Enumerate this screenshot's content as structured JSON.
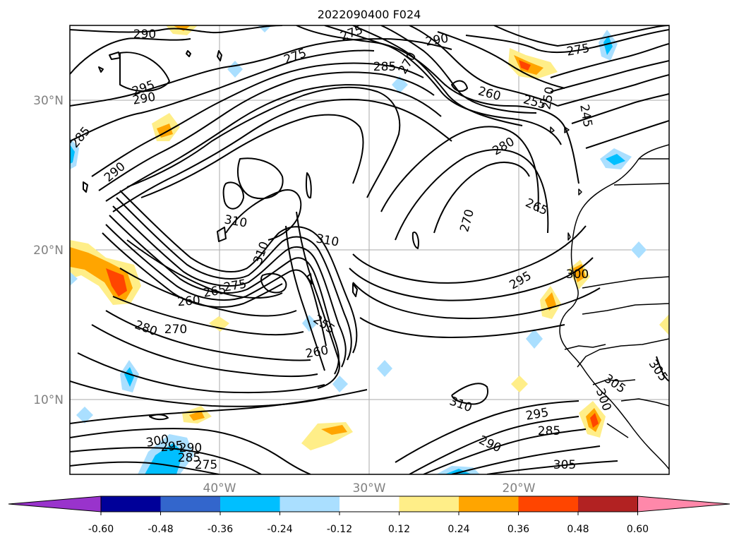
{
  "title": "2022090400 F024",
  "lat_labels": [
    "30°N",
    "20°N",
    "10°N"
  ],
  "lon_labels": [
    "40°W",
    "30°W",
    "20°W"
  ],
  "colorbar": {
    "ticks": [
      "-0.60",
      "-0.48",
      "-0.36",
      "-0.24",
      "-0.12",
      "0.12",
      "0.24",
      "0.36",
      "0.48",
      "0.60"
    ],
    "colors": [
      "#9933cc",
      "#000099",
      "#3366cc",
      "#00bfff",
      "#aadfff",
      "#ffffff",
      "#ffee88",
      "#ffa500",
      "#ff4500",
      "#b22222",
      "#ff88aa"
    ]
  },
  "contour_labels": [
    "290",
    "275",
    "285",
    "275",
    "270",
    "290",
    "275",
    "295",
    "290",
    "285",
    "290",
    "260",
    "255",
    "250",
    "245",
    "280",
    "270",
    "265",
    "310",
    "310",
    "310",
    "300",
    "295",
    "260",
    "265",
    "275",
    "270",
    "280",
    "255",
    "260",
    "310",
    "295",
    "285",
    "290",
    "305",
    "305",
    "300",
    "305",
    "300",
    "295",
    "290",
    "285",
    "275"
  ],
  "shading_colors": {
    "weak_pos": "#ffee88",
    "mod_pos": "#ffa500",
    "strong_pos": "#ff4500",
    "weak_neg": "#aadfff",
    "mod_neg": "#00bfff",
    "strong_neg": "#3366cc"
  }
}
